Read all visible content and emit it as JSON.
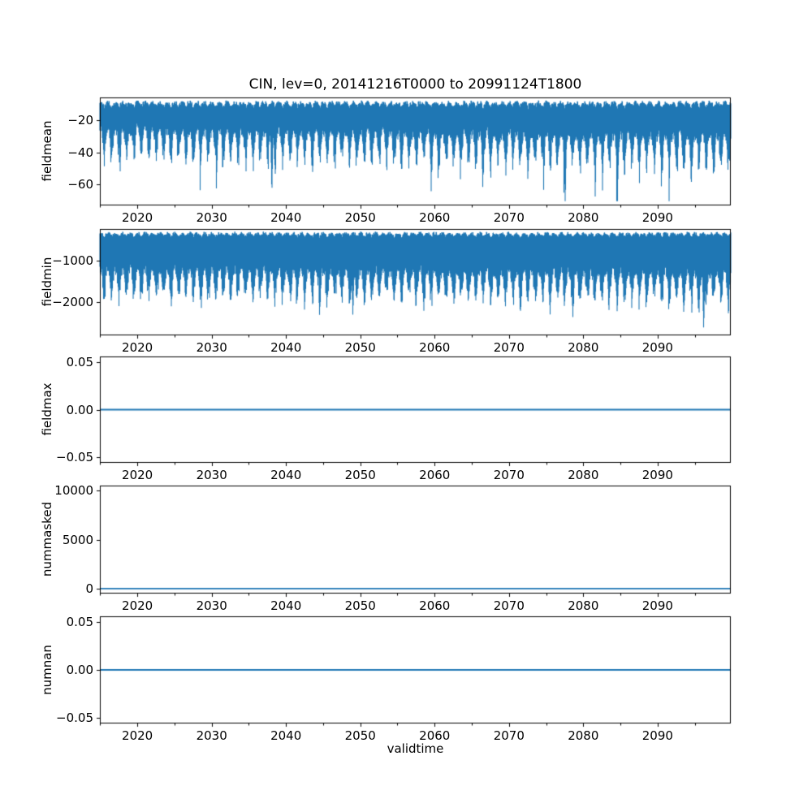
{
  "figure": {
    "title": "CIN, lev=0, 20141216T0000 to 20991124T1800",
    "xlabel": "validtime",
    "background": "#ffffff",
    "line_color": "#1f77b4",
    "axis_color": "#000000",
    "text_color": "#000000"
  },
  "chart_data": [
    {
      "type": "line",
      "panel": "fieldmean",
      "ylabel": "fieldmean",
      "x_range": [
        2014.96,
        2099.85
      ],
      "x_ticks": [
        2020,
        2030,
        2040,
        2050,
        2060,
        2070,
        2080,
        2090
      ],
      "x_tick_labels": [
        "2020",
        "2030",
        "2040",
        "2050",
        "2060",
        "2070",
        "2080",
        "2090"
      ],
      "x_minor_ticks": [
        2015,
        2025,
        2035,
        2045,
        2055,
        2065,
        2075,
        2085,
        2095
      ],
      "ylim": [
        -73.2,
        -5.6
      ],
      "y_ticks": [
        -20,
        -40,
        -60
      ],
      "y_tick_labels": [
        "−20",
        "−40",
        "−60"
      ],
      "grid": false,
      "legend": "none",
      "signal": {
        "kind": "noisy_band",
        "seed": 11,
        "top_mean": -10.5,
        "top_season": 3.0,
        "top_jitter": 2.5,
        "depth_base": 14,
        "depth_seasonal": 18,
        "depth_jitter": 6,
        "season_phase": 0.55,
        "season_sharpness": 2.0,
        "trend_per_year": 0.0025,
        "spike_prob": 0.05,
        "spike_extra_min": 8,
        "spike_extra_max": 26,
        "floor": -70.5,
        "forced_dips": [
          {
            "x": 2038.1,
            "value": -67
          }
        ]
      }
    },
    {
      "type": "line",
      "panel": "fieldmin",
      "ylabel": "fieldmin",
      "x_range": [
        2014.96,
        2099.85
      ],
      "x_ticks": [
        2020,
        2030,
        2040,
        2050,
        2060,
        2070,
        2080,
        2090
      ],
      "x_tick_labels": [
        "2020",
        "2030",
        "2040",
        "2050",
        "2060",
        "2070",
        "2080",
        "2090"
      ],
      "x_minor_ticks": [
        2015,
        2025,
        2035,
        2045,
        2055,
        2065,
        2075,
        2085,
        2095
      ],
      "ylim": [
        -2820,
        -225
      ],
      "y_ticks": [
        -1000,
        -2000
      ],
      "y_tick_labels": [
        "−1000",
        "−2000"
      ],
      "grid": false,
      "legend": "none",
      "signal": {
        "kind": "noisy_band",
        "seed": 23,
        "top_mean": -380,
        "top_season": 90,
        "top_jitter": 70,
        "depth_base": 750,
        "depth_seasonal": 700,
        "depth_jitter": 250,
        "season_phase": 0.55,
        "season_sharpness": 1.6,
        "trend_per_year": 0.001,
        "spike_prob": 0.04,
        "spike_extra_min": 150,
        "spike_extra_max": 450,
        "floor": -2720,
        "forced_dips": [
          {
            "x": 2049.0,
            "value": -2360
          },
          {
            "x": 2096.2,
            "value": -2700
          }
        ]
      }
    },
    {
      "type": "line",
      "panel": "fieldmax",
      "ylabel": "fieldmax",
      "x_range": [
        2014.96,
        2099.85
      ],
      "x_ticks": [
        2020,
        2030,
        2040,
        2050,
        2060,
        2070,
        2080,
        2090
      ],
      "x_tick_labels": [
        "2020",
        "2030",
        "2040",
        "2050",
        "2060",
        "2070",
        "2080",
        "2090"
      ],
      "x_minor_ticks": [
        2015,
        2025,
        2035,
        2045,
        2055,
        2065,
        2075,
        2085,
        2095
      ],
      "ylim": [
        -0.0558,
        0.0558
      ],
      "y_ticks": [
        0.05,
        0.0,
        -0.05
      ],
      "y_tick_labels": [
        "0.05",
        "0.00",
        "−0.05"
      ],
      "grid": false,
      "legend": "none",
      "signal": {
        "kind": "constant",
        "value": 0
      }
    },
    {
      "type": "line",
      "panel": "nummasked",
      "ylabel": "nummasked",
      "x_range": [
        2014.96,
        2099.85
      ],
      "x_ticks": [
        2020,
        2030,
        2040,
        2050,
        2060,
        2070,
        2080,
        2090
      ],
      "x_tick_labels": [
        "2020",
        "2030",
        "2040",
        "2050",
        "2060",
        "2070",
        "2080",
        "2090"
      ],
      "x_minor_ticks": [
        2015,
        2025,
        2035,
        2045,
        2055,
        2065,
        2075,
        2085,
        2095
      ],
      "ylim": [
        -500,
        10500
      ],
      "y_ticks": [
        10000,
        5000,
        0
      ],
      "y_tick_labels": [
        "10000",
        "5000",
        "0"
      ],
      "grid": false,
      "legend": "none",
      "signal": {
        "kind": "constant",
        "value": 0
      }
    },
    {
      "type": "line",
      "panel": "numnan",
      "ylabel": "numnan",
      "x_range": [
        2014.96,
        2099.85
      ],
      "x_ticks": [
        2020,
        2030,
        2040,
        2050,
        2060,
        2070,
        2080,
        2090
      ],
      "x_tick_labels": [
        "2020",
        "2030",
        "2040",
        "2050",
        "2060",
        "2070",
        "2080",
        "2090"
      ],
      "x_minor_ticks": [
        2015,
        2025,
        2035,
        2045,
        2055,
        2065,
        2075,
        2085,
        2095
      ],
      "ylim": [
        -0.0558,
        0.0558
      ],
      "y_ticks": [
        0.05,
        0.0,
        -0.05
      ],
      "y_tick_labels": [
        "0.05",
        "0.00",
        "−0.05"
      ],
      "grid": false,
      "legend": "none",
      "signal": {
        "kind": "constant",
        "value": 0
      }
    }
  ]
}
